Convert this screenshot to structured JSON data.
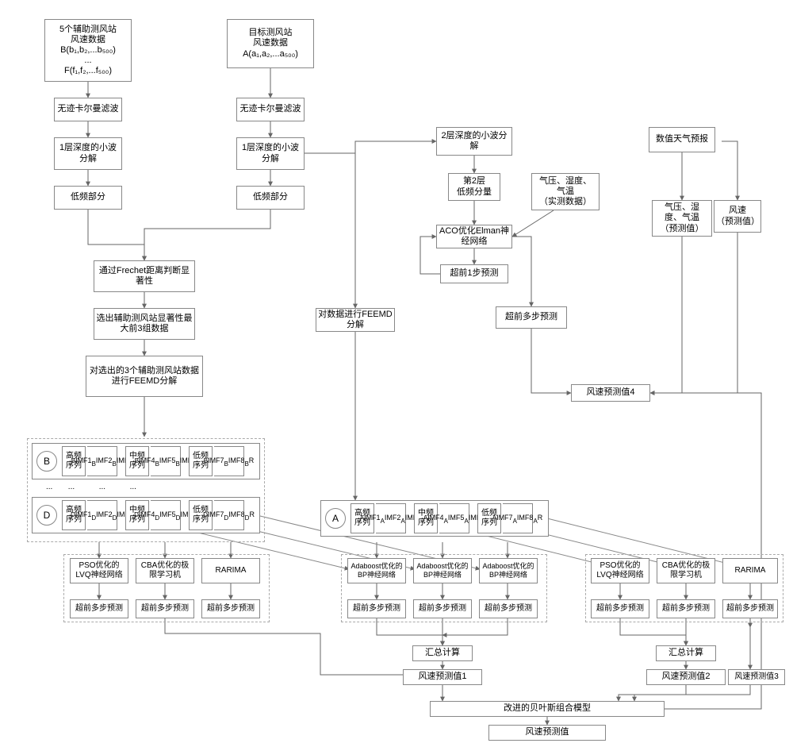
{
  "type": "flowchart",
  "theme": {
    "bg": "#ffffff",
    "box_border": "#888888",
    "box_bg": "#ffffff",
    "dash_border": "#aaaaaa",
    "line_color": "#666666",
    "font_family": "SimSun",
    "base_fontsize": 11
  },
  "nodes": {
    "topleft_data": "5个辅助测风站\n风速数据\nB(b₁,b₂,...b₅₀₀)\n...\nF(f₁,f₂,...f₅₀₀)",
    "target_data": "目标测风站\n风速数据\nA(a₁,a₂,...a₅₀₀)",
    "ukf1": "无迹卡尔曼滤波",
    "ukf2": "无迹卡尔曼滤波",
    "wave1_1": "1层深度的小波分解",
    "wave1_2": "1层深度的小波分解",
    "wave2": "2层深度的小波分解",
    "wave2_low": "第2层\n低频分量",
    "nwp": "数值天气预报",
    "met_real": "气压、湿度、\n气温\n（实测数据）",
    "met_pred": "气压、湿\n度、气温\n（预测值）",
    "wind_pred": "风速\n（预测值）",
    "low1": "低频部分",
    "low2": "低频部分",
    "frechet": "通过Frechet距离判断显著性",
    "pick3": "选出辅助测风站显著性最大前3组数据",
    "feemd_aux": "对选出的3个辅助测风站数据进行FEEMD分解",
    "feemd_tgt": "对数据进行FEEMD分解",
    "aco_elman": "ACO优化Elman神经网络",
    "lead1": "超前1步预测",
    "lead_multi_aco": "超前多步预测",
    "pred4": "风速预测值4",
    "seq_high": "高频序列",
    "seq_mid": "中频序列",
    "seq_low": "低频序列",
    "B_imf_high": "B·IMF1\nB·IMF2\nB·IMF3",
    "B_imf_mid": "B·IMF4\nB·IMF5\nB·IMF6",
    "B_imf_low": "B·IMF7\nB·IMF8\nB·R",
    "D_imf_high": "D·IMF1\nD·IMF2\nD·IMF3",
    "D_imf_mid": "D·IMF4\nD·IMF5\nD·IMF6",
    "D_imf_low": "D·IMF7\nD·IMF8\nD·R",
    "A_imf_high": "A·IMF1\nA·IMF2\nA·IMF3",
    "A_imf_mid": "A·IMF4\nA·IMF5\nA·IMF6",
    "A_imf_low": "A·IMF7\nA·IMF8\nA·R",
    "pso_lvq": "PSO优化的LVQ神经网络",
    "cba_elm": "CBA优化的极限学习机",
    "rarima": "RARIMA",
    "ada_bp": "Adaboost优化的BP神经网络",
    "lead_multi": "超前多步预测",
    "sum": "汇总计算",
    "pred1": "风速预测值1",
    "pred2": "风速预测值2",
    "pred3": "风速预测值3",
    "bayes": "改进的贝叶斯组合模型",
    "final": "风速预测值",
    "dots": "...",
    "B_label": "B",
    "D_label": "D",
    "A_label": "A"
  },
  "imf_sub": {
    "imf": "IMF",
    "r": "R"
  }
}
